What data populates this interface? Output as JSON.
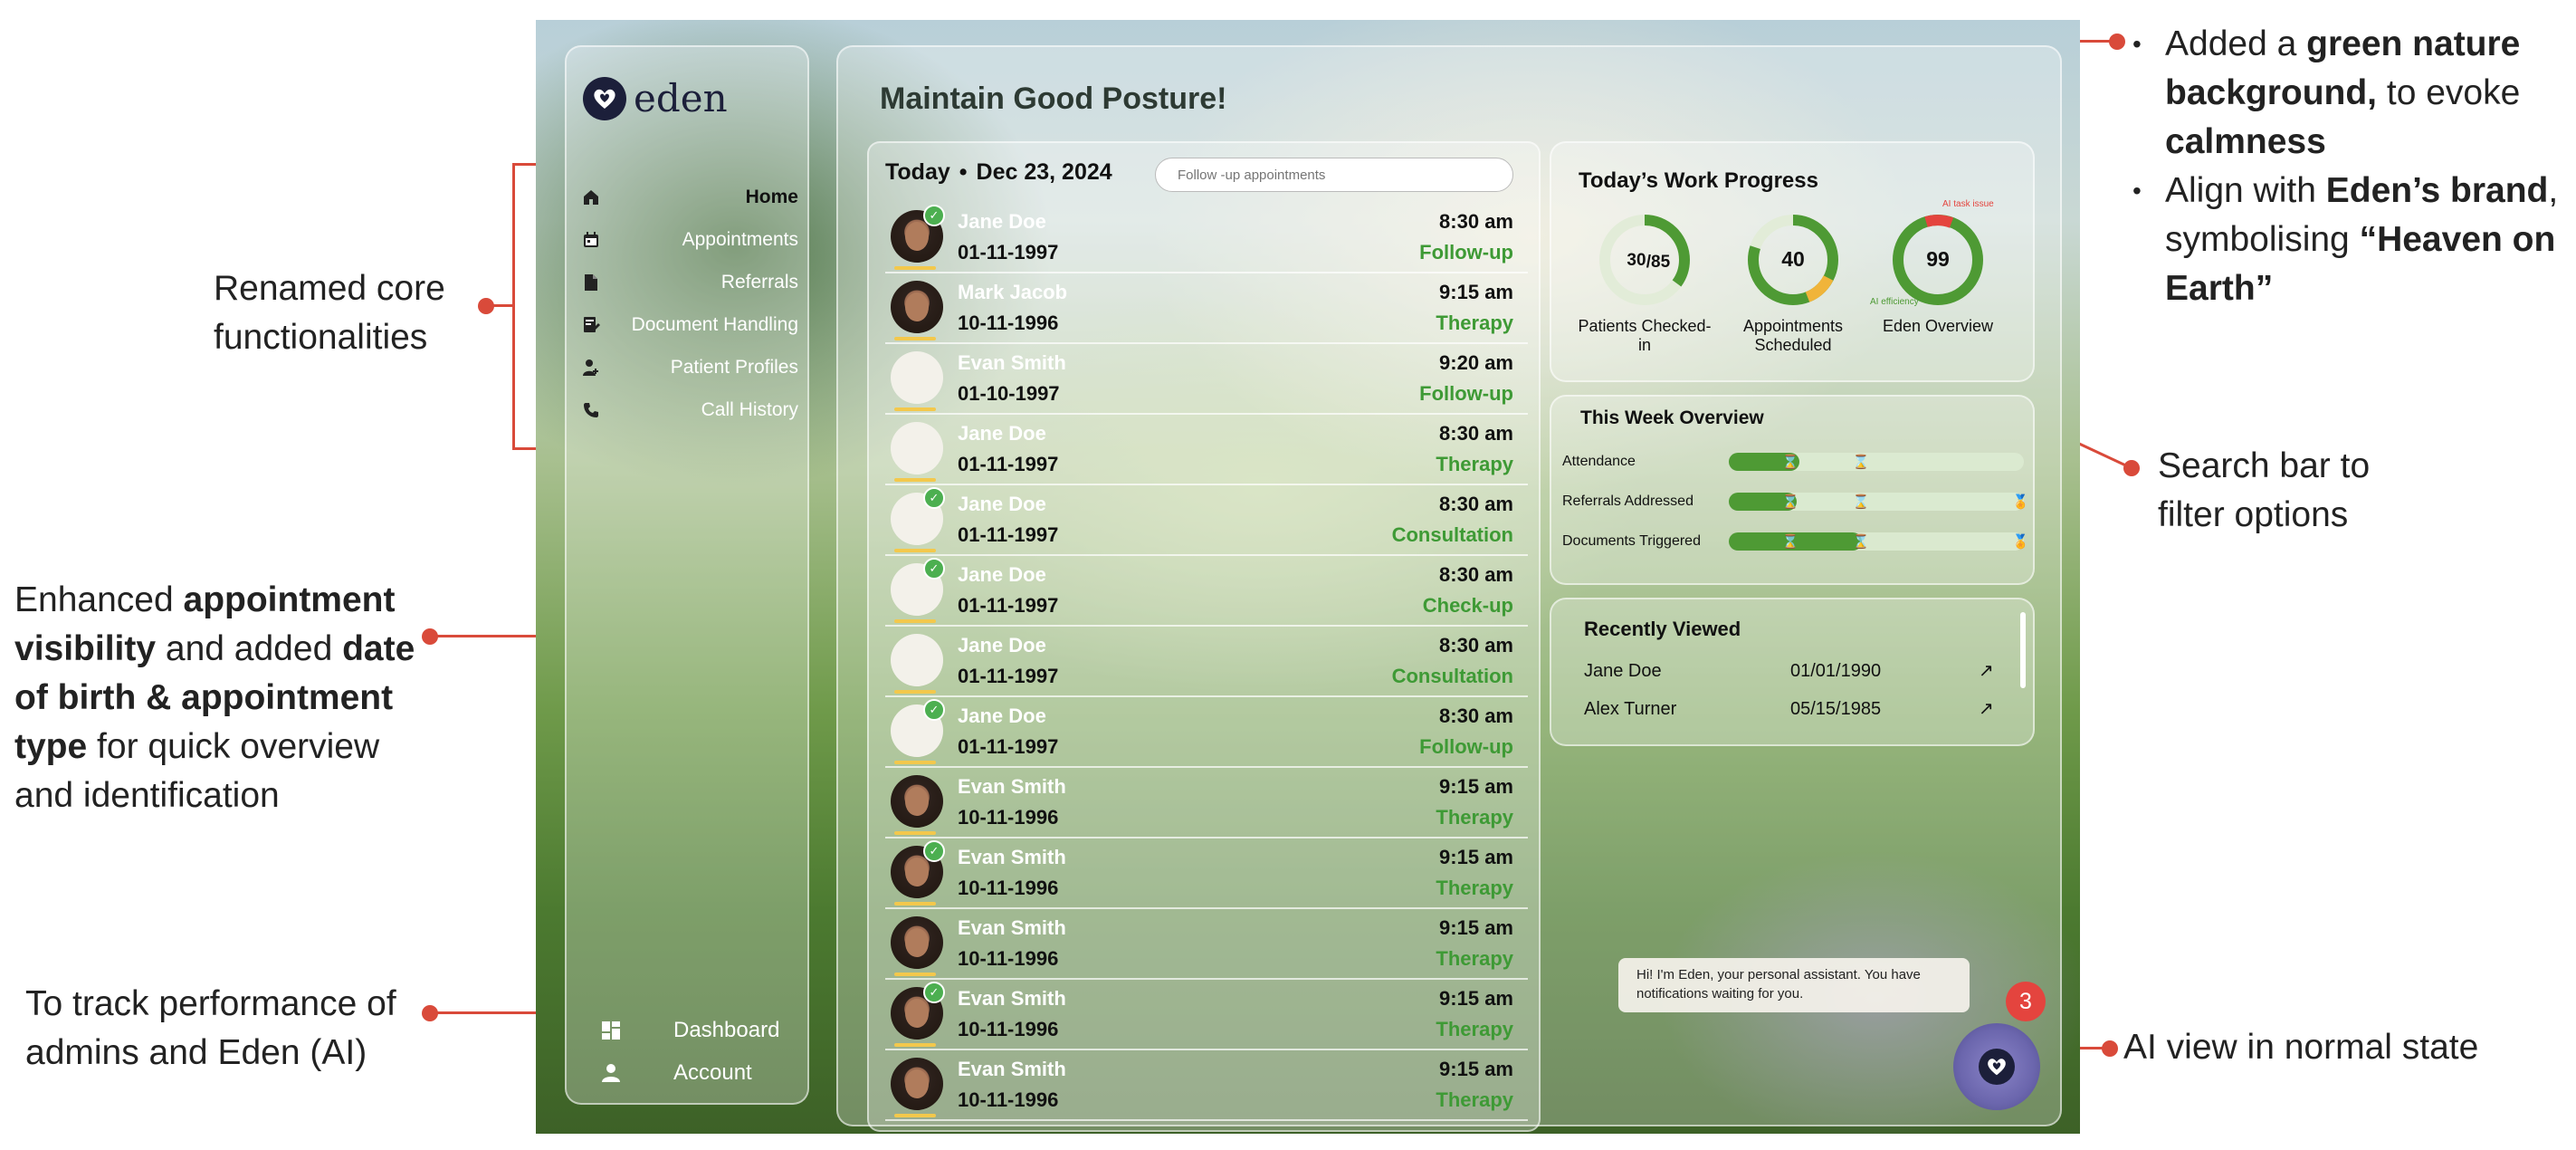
{
  "annotations": {
    "left_1": "Renamed core functionalities",
    "left_2_parts": [
      "Enhanced ",
      "appointment visibility",
      " and added ",
      "date of birth & appointment type",
      " for quick overview and identification"
    ],
    "left_3": "To track performance of admins and Eden (AI)",
    "right_bullet_1_parts": [
      "Added a ",
      "green nature background,",
      " to evoke ",
      "calmness"
    ],
    "right_bullet_2_parts": [
      "Align with ",
      "Eden’s brand",
      ", symbolising ",
      "“Heaven on Earth”"
    ],
    "right_search": "Search bar to filter options",
    "right_ai": "AI view in normal state"
  },
  "app": {
    "logo_text": "eden",
    "nav": [
      {
        "label": "Home",
        "icon": "home-icon",
        "active": true
      },
      {
        "label": "Appointments",
        "icon": "calendar-icon"
      },
      {
        "label": "Referrals",
        "icon": "document-icon"
      },
      {
        "label": "Document Handling",
        "icon": "file-edit-icon"
      },
      {
        "label": "Patient Profiles",
        "icon": "patient-icon"
      },
      {
        "label": "Call History",
        "icon": "phone-icon"
      }
    ],
    "bottom_nav": [
      {
        "label": "Dashboard",
        "icon": "dashboard-icon"
      },
      {
        "label": "Account",
        "icon": "user-icon"
      }
    ]
  },
  "main": {
    "title": "Maintain Good Posture!",
    "today_label": "Today",
    "date": "Dec 23, 2024",
    "search_placeholder": "Follow -up appointments",
    "appointments": [
      {
        "name": "Jane Doe",
        "dob": "01-11-1997",
        "time": "8:30 am",
        "type": "Follow-up",
        "photo": true,
        "checked": true
      },
      {
        "name": "Mark Jacob",
        "dob": "10-11-1996",
        "time": "9:15 am",
        "type": "Therapy",
        "photo": true,
        "checked": false
      },
      {
        "name": "Evan Smith",
        "dob": "01-10-1997",
        "time": "9:20 am",
        "type": "Follow-up",
        "photo": false,
        "checked": false
      },
      {
        "name": "Jane Doe",
        "dob": "01-11-1997",
        "time": "8:30 am",
        "type": "Therapy",
        "photo": false,
        "checked": false
      },
      {
        "name": "Jane Doe",
        "dob": "01-11-1997",
        "time": "8:30 am",
        "type": "Consultation",
        "photo": false,
        "checked": true
      },
      {
        "name": "Jane Doe",
        "dob": "01-11-1997",
        "time": "8:30 am",
        "type": "Check-up",
        "photo": false,
        "checked": true
      },
      {
        "name": "Jane Doe",
        "dob": "01-11-1997",
        "time": "8:30 am",
        "type": "Consultation",
        "photo": false,
        "checked": false
      },
      {
        "name": "Jane Doe",
        "dob": "01-11-1997",
        "time": "8:30 am",
        "type": "Follow-up",
        "photo": false,
        "checked": true
      },
      {
        "name": "Evan Smith",
        "dob": "10-11-1996",
        "time": "9:15 am",
        "type": "Therapy",
        "photo": true,
        "checked": false
      },
      {
        "name": "Evan Smith",
        "dob": "10-11-1996",
        "time": "9:15 am",
        "type": "Therapy",
        "photo": true,
        "checked": true
      },
      {
        "name": "Evan Smith",
        "dob": "10-11-1996",
        "time": "9:15 am",
        "type": "Therapy",
        "photo": true,
        "checked": false
      },
      {
        "name": "Evan Smith",
        "dob": "10-11-1996",
        "time": "9:15 am",
        "type": "Therapy",
        "photo": true,
        "checked": true
      },
      {
        "name": "Evan Smith",
        "dob": "10-11-1996",
        "time": "9:15 am",
        "type": "Therapy",
        "photo": true,
        "checked": false
      }
    ],
    "work_progress": {
      "title": "Today’s Work Progress",
      "patients": {
        "value": "30",
        "total": "/85",
        "label": "Patients Checked-in",
        "fraction": 0.35
      },
      "appointments": {
        "value": "40",
        "label": "Appointments Scheduled",
        "fraction": 0.8
      },
      "eden": {
        "value": "99",
        "label": "Eden Overview",
        "fraction": 0.99,
        "tag_top": "AI task issue",
        "tag_bottom": "AI efficiency"
      }
    },
    "week_overview": {
      "title": "This Week Overview",
      "rows": [
        {
          "label": "Attendance",
          "fill": 0.24
        },
        {
          "label": "Referrals Addressed",
          "fill": 0.23
        },
        {
          "label": "Documents Triggered",
          "fill": 0.45
        }
      ]
    },
    "recently_viewed": {
      "title": "Recently Viewed",
      "items": [
        {
          "name": "Jane Doe",
          "date": "01/01/1990"
        },
        {
          "name": "Alex Turner",
          "date": "05/15/1985"
        }
      ]
    },
    "chat": {
      "message": "Hi! I'm Eden, your personal assistant. You have notifications waiting for you.",
      "badge": "3"
    }
  },
  "colors": {
    "accent_red": "#d94a3a",
    "green": "#4e9a34",
    "text_type_green": "#3e9a35",
    "logo_dark": "#1c1f3a"
  }
}
